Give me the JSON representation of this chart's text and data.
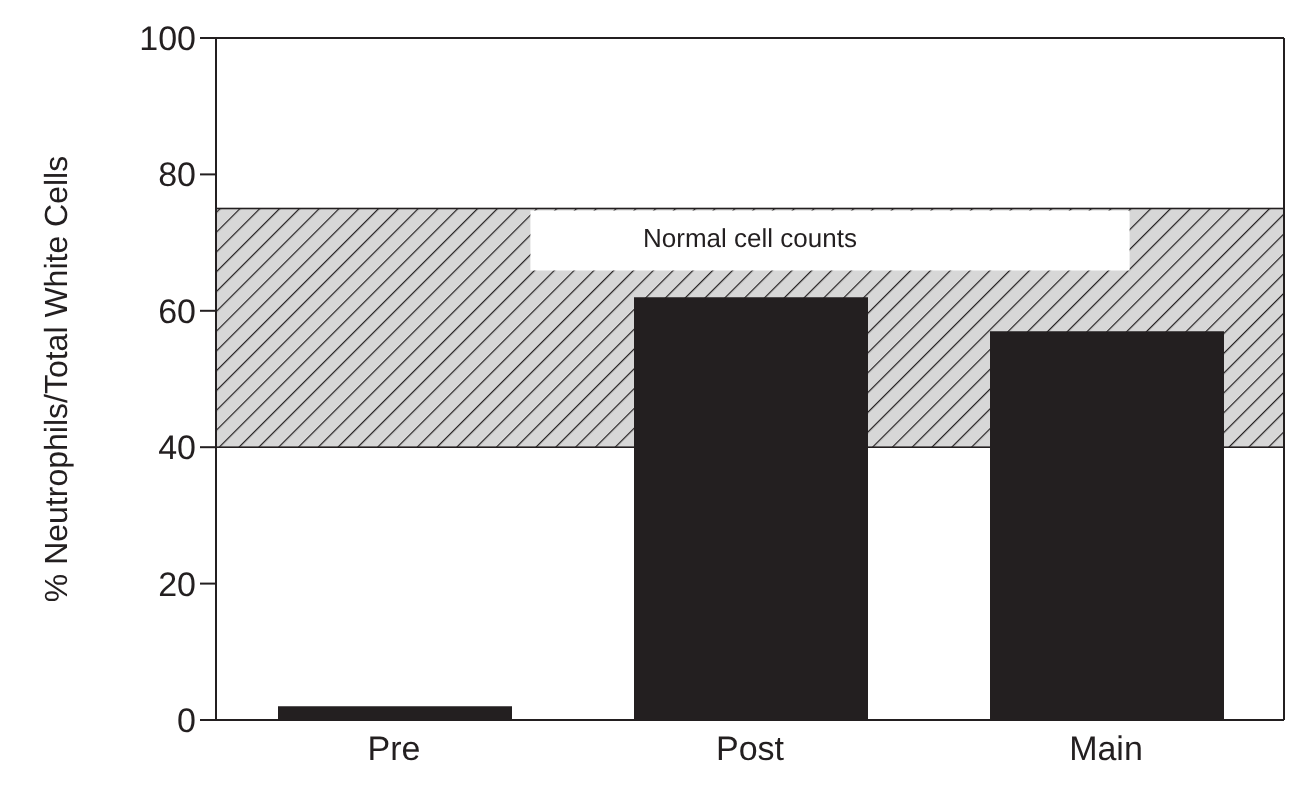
{
  "chart_data": {
    "type": "bar",
    "ylabel": "% Neutrophils/Total White Cells",
    "categories": [
      "Pre",
      "Post",
      "Main"
    ],
    "values": [
      2,
      62,
      57
    ],
    "color": "#231f20",
    "ylim": [
      0,
      100
    ],
    "yticks": [
      0,
      20,
      40,
      60,
      80,
      100
    ],
    "grid": false,
    "bands": [
      {
        "axis": "y",
        "from": 40,
        "to": 75,
        "label": "Normal cell counts",
        "color": "#231f20"
      }
    ]
  }
}
